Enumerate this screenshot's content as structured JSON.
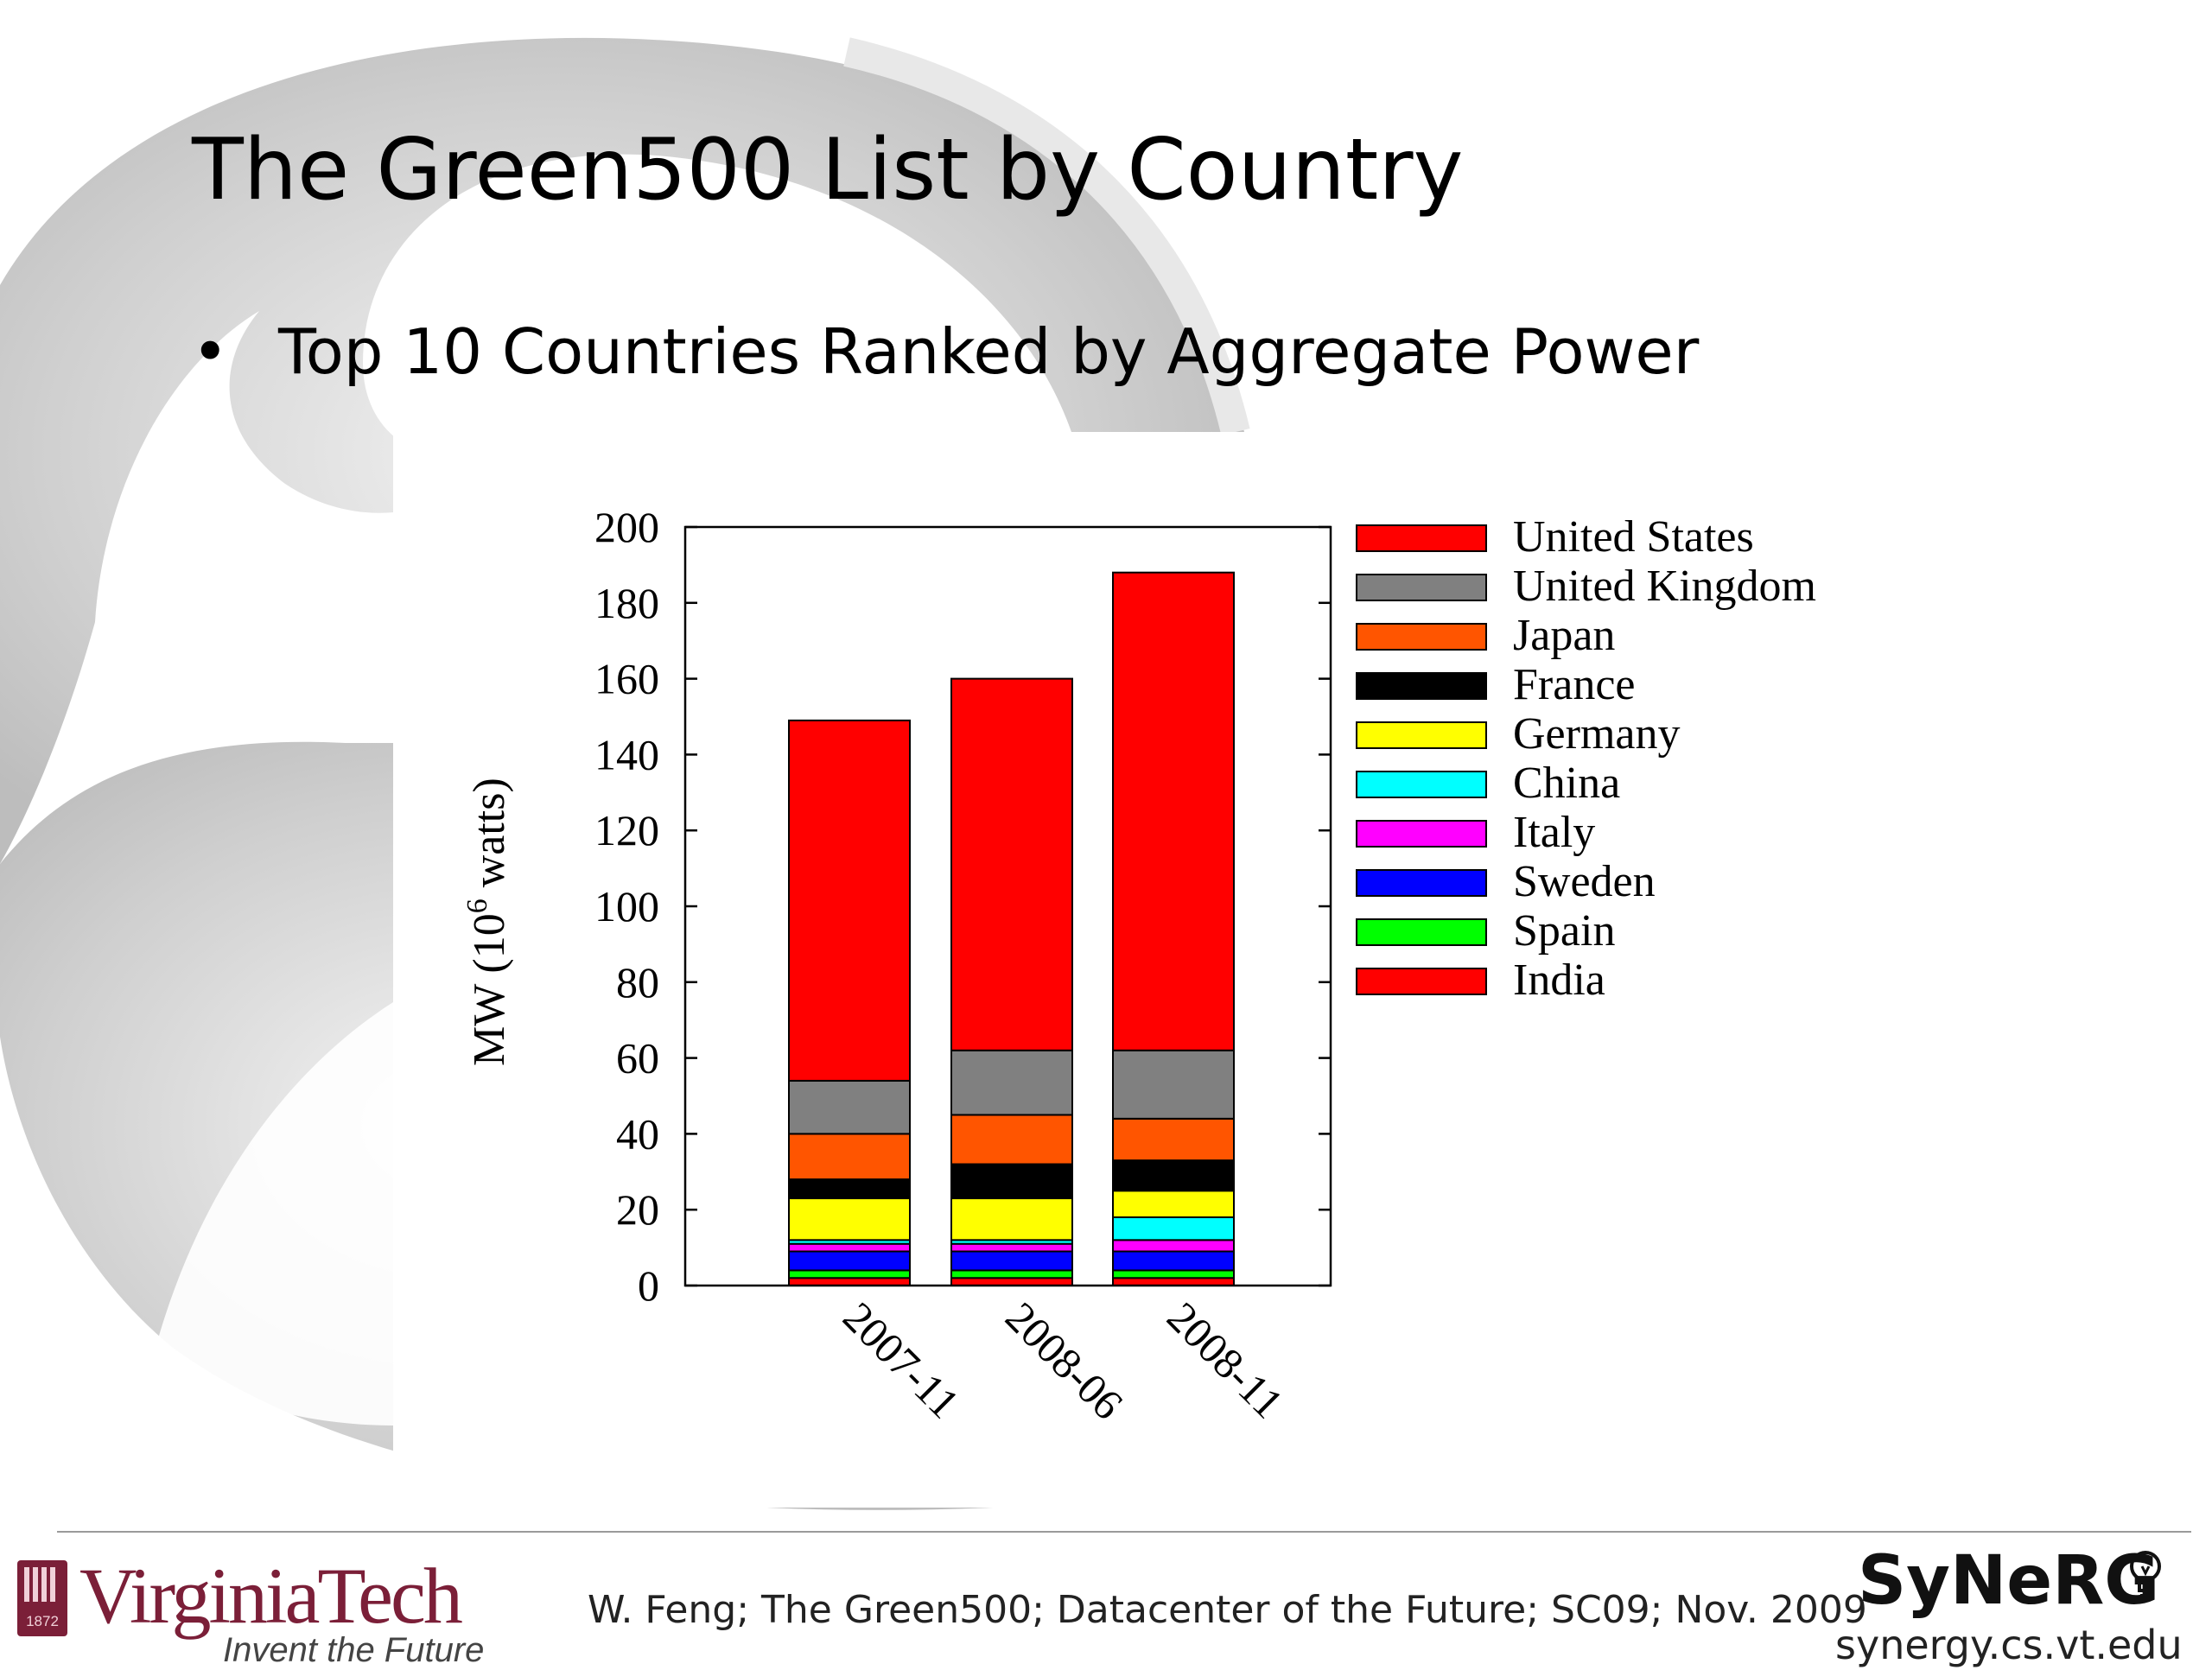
{
  "slide": {
    "title": "The Green500 List by Country",
    "bullet": "Top 10 Countries Ranked by Aggregate Power"
  },
  "chart_data": {
    "type": "bar",
    "stacked": true,
    "categories": [
      "2007-11",
      "2008-06",
      "2008-11"
    ],
    "ylabel": "MW (10",
    "ylabel_sup": "6",
    "ylabel_tail": " watts)",
    "ylim": [
      0,
      200
    ],
    "yticks": [
      "0",
      "20",
      "40",
      "60",
      "80",
      "100",
      "120",
      "140",
      "160",
      "180",
      "200"
    ],
    "legend_position": "right",
    "series": [
      {
        "name": "India",
        "color": "#ff0000",
        "values": [
          2,
          2,
          2
        ]
      },
      {
        "name": "Spain",
        "color": "#00ff00",
        "values": [
          2,
          2,
          2
        ]
      },
      {
        "name": "Sweden",
        "color": "#0000ff",
        "values": [
          5,
          5,
          5
        ]
      },
      {
        "name": "Italy",
        "color": "#ff00ff",
        "values": [
          2,
          2,
          3
        ]
      },
      {
        "name": "China",
        "color": "#00ffff",
        "values": [
          1,
          1,
          6
        ]
      },
      {
        "name": "Germany",
        "color": "#ffff00",
        "values": [
          11,
          11,
          7
        ]
      },
      {
        "name": "France",
        "color": "#000000",
        "values": [
          5,
          9,
          8
        ]
      },
      {
        "name": "Japan",
        "color": "#ff5500",
        "values": [
          12,
          13,
          11
        ]
      },
      {
        "name": "United Kingdom",
        "color": "#808080",
        "values": [
          14,
          17,
          18
        ]
      },
      {
        "name": "United States",
        "color": "#ff0000",
        "values": [
          95,
          98,
          126
        ]
      }
    ],
    "legend_order": [
      "United States",
      "United Kingdom",
      "Japan",
      "France",
      "Germany",
      "China",
      "Italy",
      "Sweden",
      "Spain",
      "India"
    ]
  },
  "footer": {
    "university": "VirginiaTech",
    "university_year": "1872",
    "tagline": "Invent the Future",
    "citation": "W. Feng; The Green500; Datacenter of the Future; SC09; Nov. 2009",
    "lab": "SyNeRG",
    "lab_url": "synergy.cs.vt.edu"
  },
  "colors": {
    "vt_maroon": "#7b1f38",
    "swoosh_gray": "#d4d4d4"
  }
}
